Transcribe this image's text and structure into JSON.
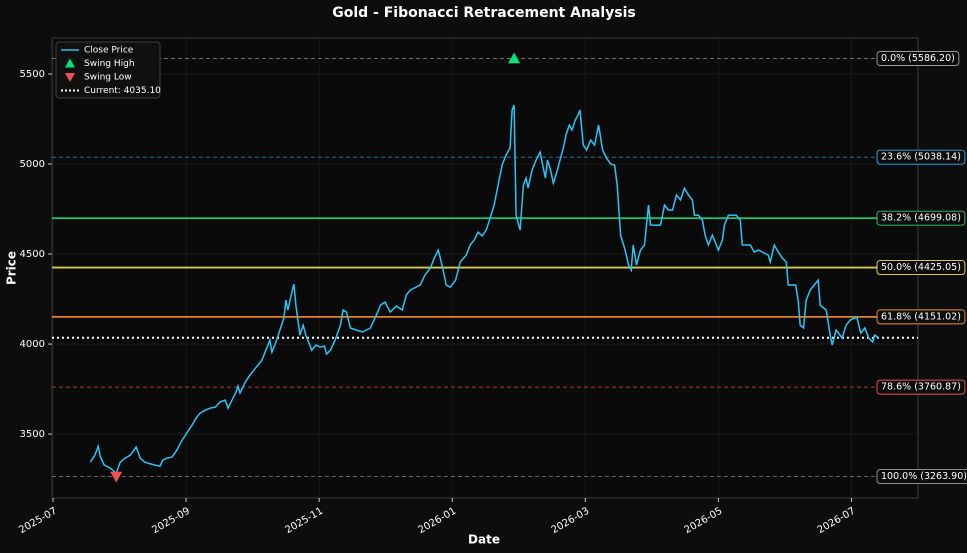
{
  "chart_data": {
    "type": "line",
    "title": "Gold - Fibonacci Retracement Analysis",
    "xlabel": "Date",
    "ylabel": "Price",
    "xlim": [
      -0.015,
      13.0
    ],
    "ylim": [
      3145,
      5700
    ],
    "xticks": [
      {
        "value": 0,
        "label": "2025-07"
      },
      {
        "value": 2,
        "label": "2025-09"
      },
      {
        "value": 4,
        "label": "2025-11"
      },
      {
        "value": 6,
        "label": "2026-01"
      },
      {
        "value": 8,
        "label": "2026-03"
      },
      {
        "value": 10,
        "label": "2026-05"
      },
      {
        "value": 12,
        "label": "2026-07"
      }
    ],
    "yticks": [
      3500,
      4000,
      4500,
      5000,
      5500
    ],
    "grid": true,
    "legend": "upper left",
    "x": [
      0.56,
      0.63,
      0.68,
      0.71,
      0.77,
      0.86,
      0.95,
      1.01,
      1.08,
      1.16,
      1.25,
      1.31,
      1.38,
      1.53,
      1.61,
      1.65,
      1.71,
      1.79,
      1.86,
      1.94,
      2.02,
      2.09,
      2.15,
      2.21,
      2.29,
      2.36,
      2.44,
      2.51,
      2.59,
      2.63,
      2.69,
      2.75,
      2.78,
      2.81,
      2.89,
      2.96,
      3.02,
      3.08,
      3.14,
      3.2,
      3.26,
      3.29,
      3.35,
      3.41,
      3.47,
      3.5,
      3.53,
      3.59,
      3.62,
      3.65,
      3.71,
      3.76,
      3.8,
      3.89,
      3.95,
      4.02,
      4.08,
      4.11,
      4.17,
      4.24,
      4.32,
      4.36,
      4.41,
      4.47,
      4.56,
      4.65,
      4.77,
      4.86,
      4.92,
      4.99,
      5.07,
      5.16,
      5.25,
      5.31,
      5.37,
      5.52,
      5.59,
      5.67,
      5.73,
      5.79,
      5.82,
      5.88,
      5.91,
      5.97,
      6.05,
      6.12,
      6.21,
      6.27,
      6.33,
      6.39,
      6.45,
      6.51,
      6.57,
      6.63,
      6.69,
      6.75,
      6.81,
      6.87,
      6.9,
      6.93,
      6.96,
      7.02,
      7.07,
      7.11,
      7.14,
      7.2,
      7.26,
      7.32,
      7.35,
      7.4,
      7.43,
      7.47,
      7.52,
      7.58,
      7.62,
      7.67,
      7.71,
      7.76,
      7.8,
      7.85,
      7.89,
      7.92,
      7.97,
      8.02,
      8.08,
      8.14,
      8.2,
      8.26,
      8.32,
      8.38,
      8.44,
      8.48,
      8.53,
      8.59,
      8.65,
      8.69,
      8.72,
      8.77,
      8.83,
      8.89,
      8.95,
      8.98,
      9.13,
      9.19,
      9.25,
      9.31,
      9.37,
      9.43,
      9.49,
      9.55,
      9.61,
      9.64,
      9.7,
      9.76,
      9.8,
      9.85,
      9.91,
      9.97,
      10.0,
      10.06,
      10.09,
      10.15,
      10.27,
      10.33,
      10.36,
      10.48,
      10.54,
      10.6,
      10.75,
      10.78,
      10.84,
      10.9,
      10.96,
      11.02,
      11.05,
      11.16,
      11.2,
      11.23,
      11.28,
      11.32,
      11.38,
      11.44,
      11.5,
      11.53,
      11.62,
      11.68,
      11.71,
      11.77,
      11.86,
      11.92,
      11.98,
      12.08,
      12.14,
      12.2,
      12.26,
      12.32,
      12.35,
      12.41
    ],
    "series": [
      {
        "name": "Close Price",
        "color": "#29c5f6",
        "values": [
          3344,
          3383,
          3433,
          3378,
          3328,
          3311,
          3283,
          3344,
          3366,
          3383,
          3428,
          3366,
          3344,
          3328,
          3322,
          3355,
          3366,
          3372,
          3411,
          3466,
          3511,
          3550,
          3589,
          3616,
          3633,
          3644,
          3650,
          3678,
          3689,
          3644,
          3689,
          3733,
          3767,
          3728,
          3789,
          3828,
          3855,
          3883,
          3911,
          3966,
          4022,
          3955,
          4011,
          4078,
          4144,
          4244,
          4189,
          4289,
          4333,
          4216,
          4050,
          4105,
          4050,
          3966,
          3994,
          3983,
          3989,
          3944,
          3966,
          4022,
          4105,
          4189,
          4178,
          4089,
          4078,
          4067,
          4089,
          4161,
          4216,
          4233,
          4178,
          4211,
          4189,
          4272,
          4300,
          4328,
          4383,
          4422,
          4478,
          4522,
          4478,
          4383,
          4328,
          4316,
          4355,
          4455,
          4494,
          4550,
          4578,
          4622,
          4600,
          4633,
          4700,
          4772,
          4883,
          4994,
          5050,
          5089,
          5300,
          5328,
          4716,
          4633,
          4883,
          4922,
          4867,
          4967,
          5022,
          5066,
          5011,
          4922,
          5022,
          4978,
          4894,
          4967,
          5022,
          5089,
          5161,
          5216,
          5189,
          5244,
          5272,
          5300,
          5105,
          5078,
          5133,
          5105,
          5216,
          5078,
          5033,
          5000,
          4994,
          4883,
          4605,
          4533,
          4439,
          4411,
          4550,
          4439,
          4522,
          4550,
          4772,
          4661,
          4661,
          4772,
          4744,
          4744,
          4828,
          4800,
          4866,
          4828,
          4800,
          4716,
          4716,
          4689,
          4605,
          4550,
          4605,
          4550,
          4522,
          4578,
          4661,
          4716,
          4716,
          4689,
          4550,
          4550,
          4511,
          4522,
          4494,
          4455,
          4550,
          4511,
          4478,
          4455,
          4328,
          4328,
          4244,
          4105,
          4089,
          4244,
          4300,
          4328,
          4355,
          4216,
          4189,
          4050,
          3994,
          4078,
          4033,
          4105,
          4133,
          4150,
          4061,
          4089,
          4033,
          4011,
          4050,
          4035
        ]
      }
    ],
    "swing_high": {
      "name": "Swing High",
      "x": 6.93,
      "value": 5586.2,
      "color": "#00e676"
    },
    "swing_low": {
      "name": "Swing Low",
      "x": 0.95,
      "value": 3263.9,
      "color": "#ef5350"
    },
    "current": {
      "name": "Current: 4035.10",
      "value": 4035.1,
      "color": "#ffffff"
    },
    "fib_levels": [
      {
        "label": "0.0% (5586.20)",
        "value": 5586.2,
        "color": "#9e9e9e",
        "style": "dashed"
      },
      {
        "label": "23.6% (5038.14)",
        "value": 5038.14,
        "color": "#29b6f6",
        "style": "dashed"
      },
      {
        "label": "38.2% (4699.08)",
        "value": 4699.08,
        "color": "#2ecc71",
        "style": "solid"
      },
      {
        "label": "50.0% (4425.05)",
        "value": 4425.05,
        "color": "#f1e05a",
        "style": "solid"
      },
      {
        "label": "61.8% (4151.02)",
        "value": 4151.02,
        "color": "#f5922f",
        "style": "solid"
      },
      {
        "label": "78.6% (3760.87)",
        "value": 3760.87,
        "color": "#ef5350",
        "style": "dashed"
      },
      {
        "label": "100.0% (3263.90)",
        "value": 3263.9,
        "color": "#9e9e9e",
        "style": "dashed"
      }
    ]
  }
}
